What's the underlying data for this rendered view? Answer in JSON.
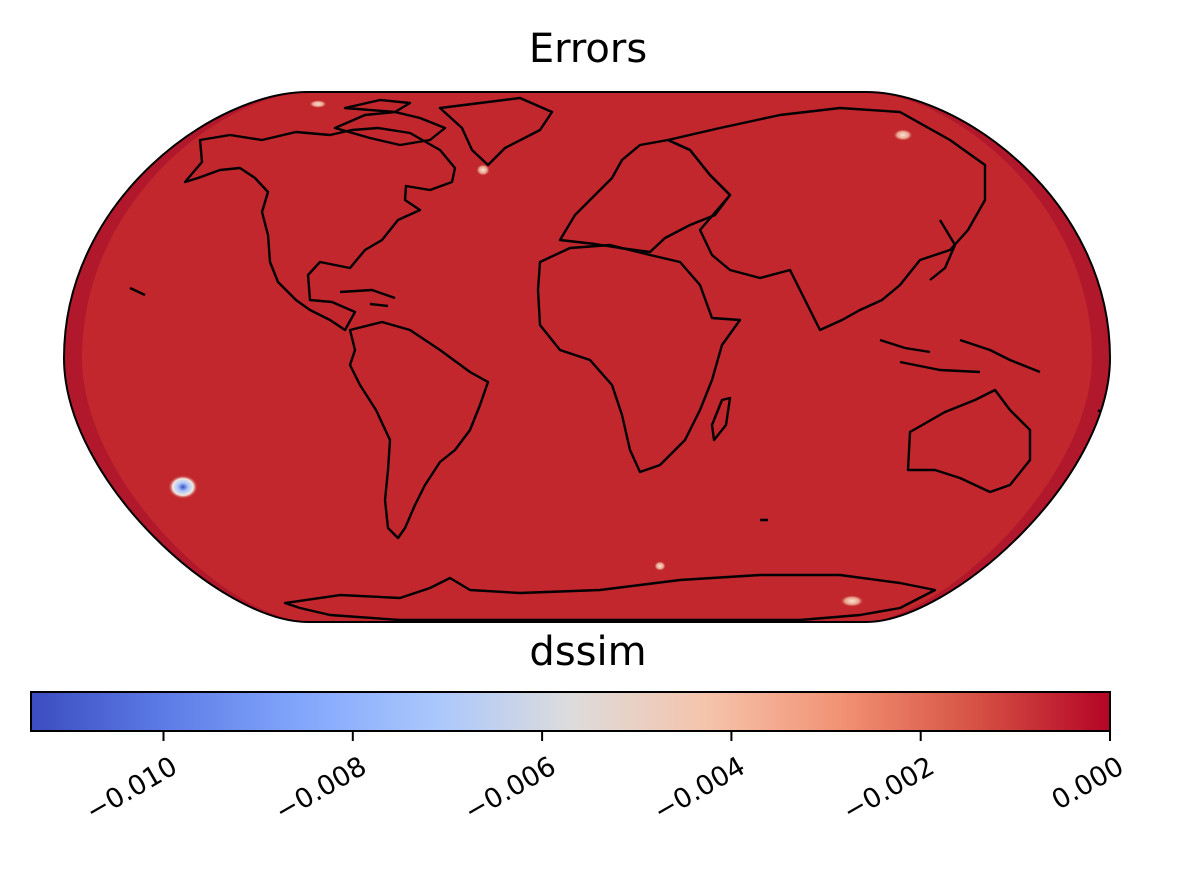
{
  "title": "Errors",
  "colorbar": {
    "label": "dssim",
    "colormap": "coolwarm",
    "vmin": -0.0114,
    "vmax": 0.0,
    "ticks": [
      -0.01,
      -0.008,
      -0.006,
      -0.004,
      -0.002,
      0.0
    ],
    "tick_labels": [
      "−0.010",
      "−0.008",
      "−0.006",
      "−0.004",
      "−0.002",
      "0.000"
    ]
  },
  "map": {
    "projection": "Robinson",
    "field": "dssim errors",
    "fill_color": "#c1272d",
    "edge_color": "#b2182b",
    "coastline_color": "#000000"
  },
  "chart_data": {
    "type": "heatmap",
    "title": "Errors",
    "colorbar_label": "dssim",
    "value_range": [
      -0.0114,
      0.0
    ],
    "background_value": 0.0,
    "anomalies": [
      {
        "lon": -153,
        "lat": -23,
        "value": -0.0114
      },
      {
        "lon": -42,
        "lat": 63,
        "value": -0.004
      },
      {
        "lon": -150,
        "lat": 88,
        "value": -0.003
      },
      {
        "lon": 147,
        "lat": 75,
        "value": -0.004
      },
      {
        "lon": 5,
        "lat": -67,
        "value": -0.003
      },
      {
        "lon": 140,
        "lat": -78,
        "value": -0.004
      }
    ]
  }
}
